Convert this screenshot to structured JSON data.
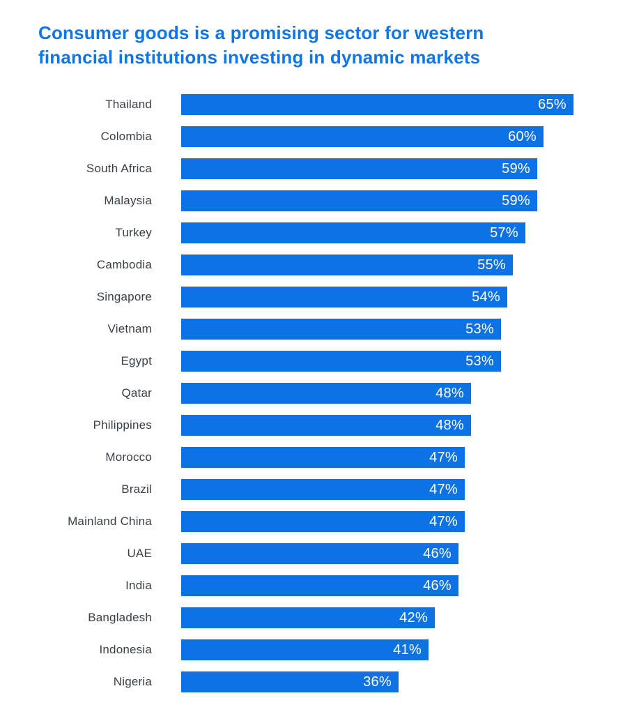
{
  "page": {
    "background": "#ffffff"
  },
  "title": {
    "text": "Consumer goods is a promising sector for western financial institutions investing in dynamic markets",
    "lines": [
      "Consumer goods is a promising sector for western",
      "financial institutions investing in dynamic markets"
    ],
    "color": "#0e76e8"
  },
  "chart_data": {
    "type": "bar",
    "orientation": "horizontal",
    "title": "Consumer goods is a promising sector for western financial institutions investing in dynamic markets",
    "categories": [
      "Thailand",
      "Colombia",
      "South Africa",
      "Malaysia",
      "Turkey",
      "Cambodia",
      "Singapore",
      "Vietnam",
      "Egypt",
      "Qatar",
      "Philippines",
      "Morocco",
      "Brazil",
      "Mainland China",
      "UAE",
      "India",
      "Bangladesh",
      "Indonesia",
      "Nigeria"
    ],
    "values": [
      65,
      60,
      59,
      59,
      57,
      55,
      54,
      53,
      53,
      48,
      48,
      47,
      47,
      47,
      46,
      46,
      42,
      41,
      36
    ],
    "unit": "%",
    "value_label_position": "inside-end",
    "xlabel": "",
    "ylabel": "",
    "xlim": [
      0,
      65
    ],
    "grid": false,
    "legend": false,
    "bar_color": "#0d73e4",
    "value_label_color": "#ffffff",
    "category_label_color": "#3b4046"
  }
}
